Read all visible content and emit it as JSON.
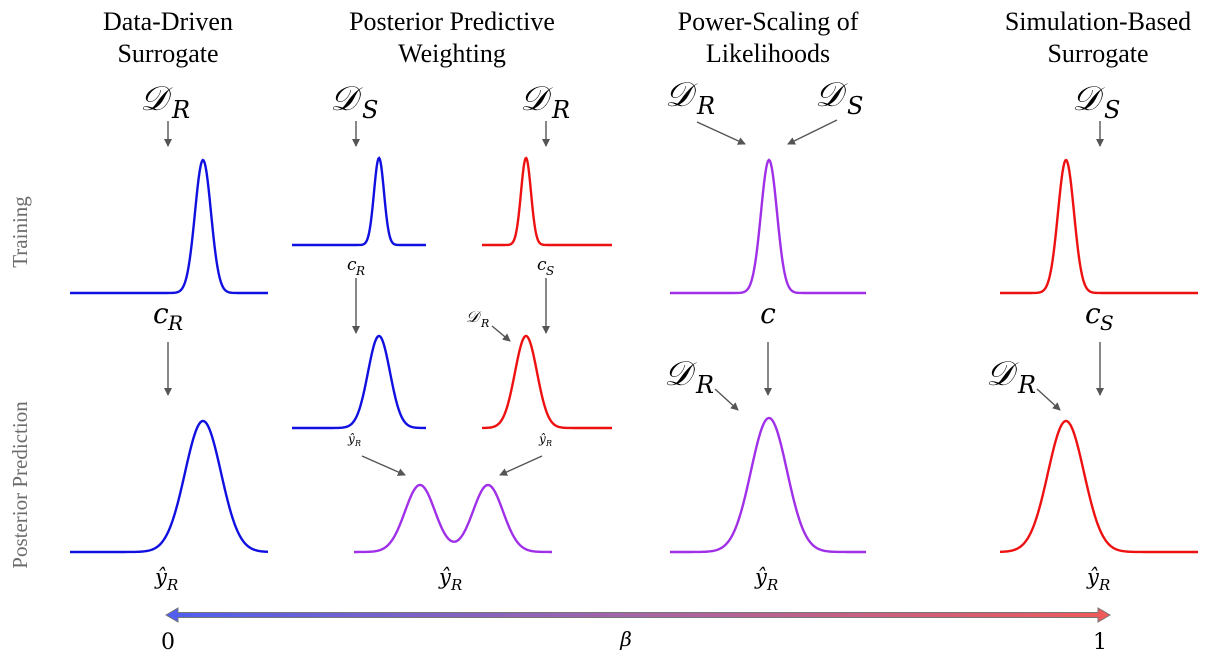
{
  "columns": [
    {
      "title_line1": "Data-Driven",
      "title_line2": "Surrogate"
    },
    {
      "title_line1": "Posterior Predictive",
      "title_line2": "Weighting"
    },
    {
      "title_line1": "Power-Scaling of",
      "title_line2": "Likelihoods"
    },
    {
      "title_line1": "Simulation-Based",
      "title_line2": "Surrogate"
    }
  ],
  "row_labels": {
    "training": "Training",
    "prediction": "Posterior Prediction"
  },
  "symbols": {
    "D": "𝒟",
    "R": "R",
    "S": "S",
    "c": "c",
    "y_hat": "ŷ"
  },
  "scale": {
    "left_label": "0",
    "right_label": "1",
    "beta": "β"
  },
  "colors": {
    "blue": "#1010e0",
    "red": "#ee1111",
    "purple": "#a030e8",
    "gradient_start": "#4f5ff0",
    "gradient_mid": "#a565a5",
    "gradient_end": "#f05a5a",
    "arrow": "#555555",
    "row_label": "#6b6b6b"
  },
  "icons": [
    "arrow-down-icon",
    "gradient-double-arrow-icon"
  ]
}
